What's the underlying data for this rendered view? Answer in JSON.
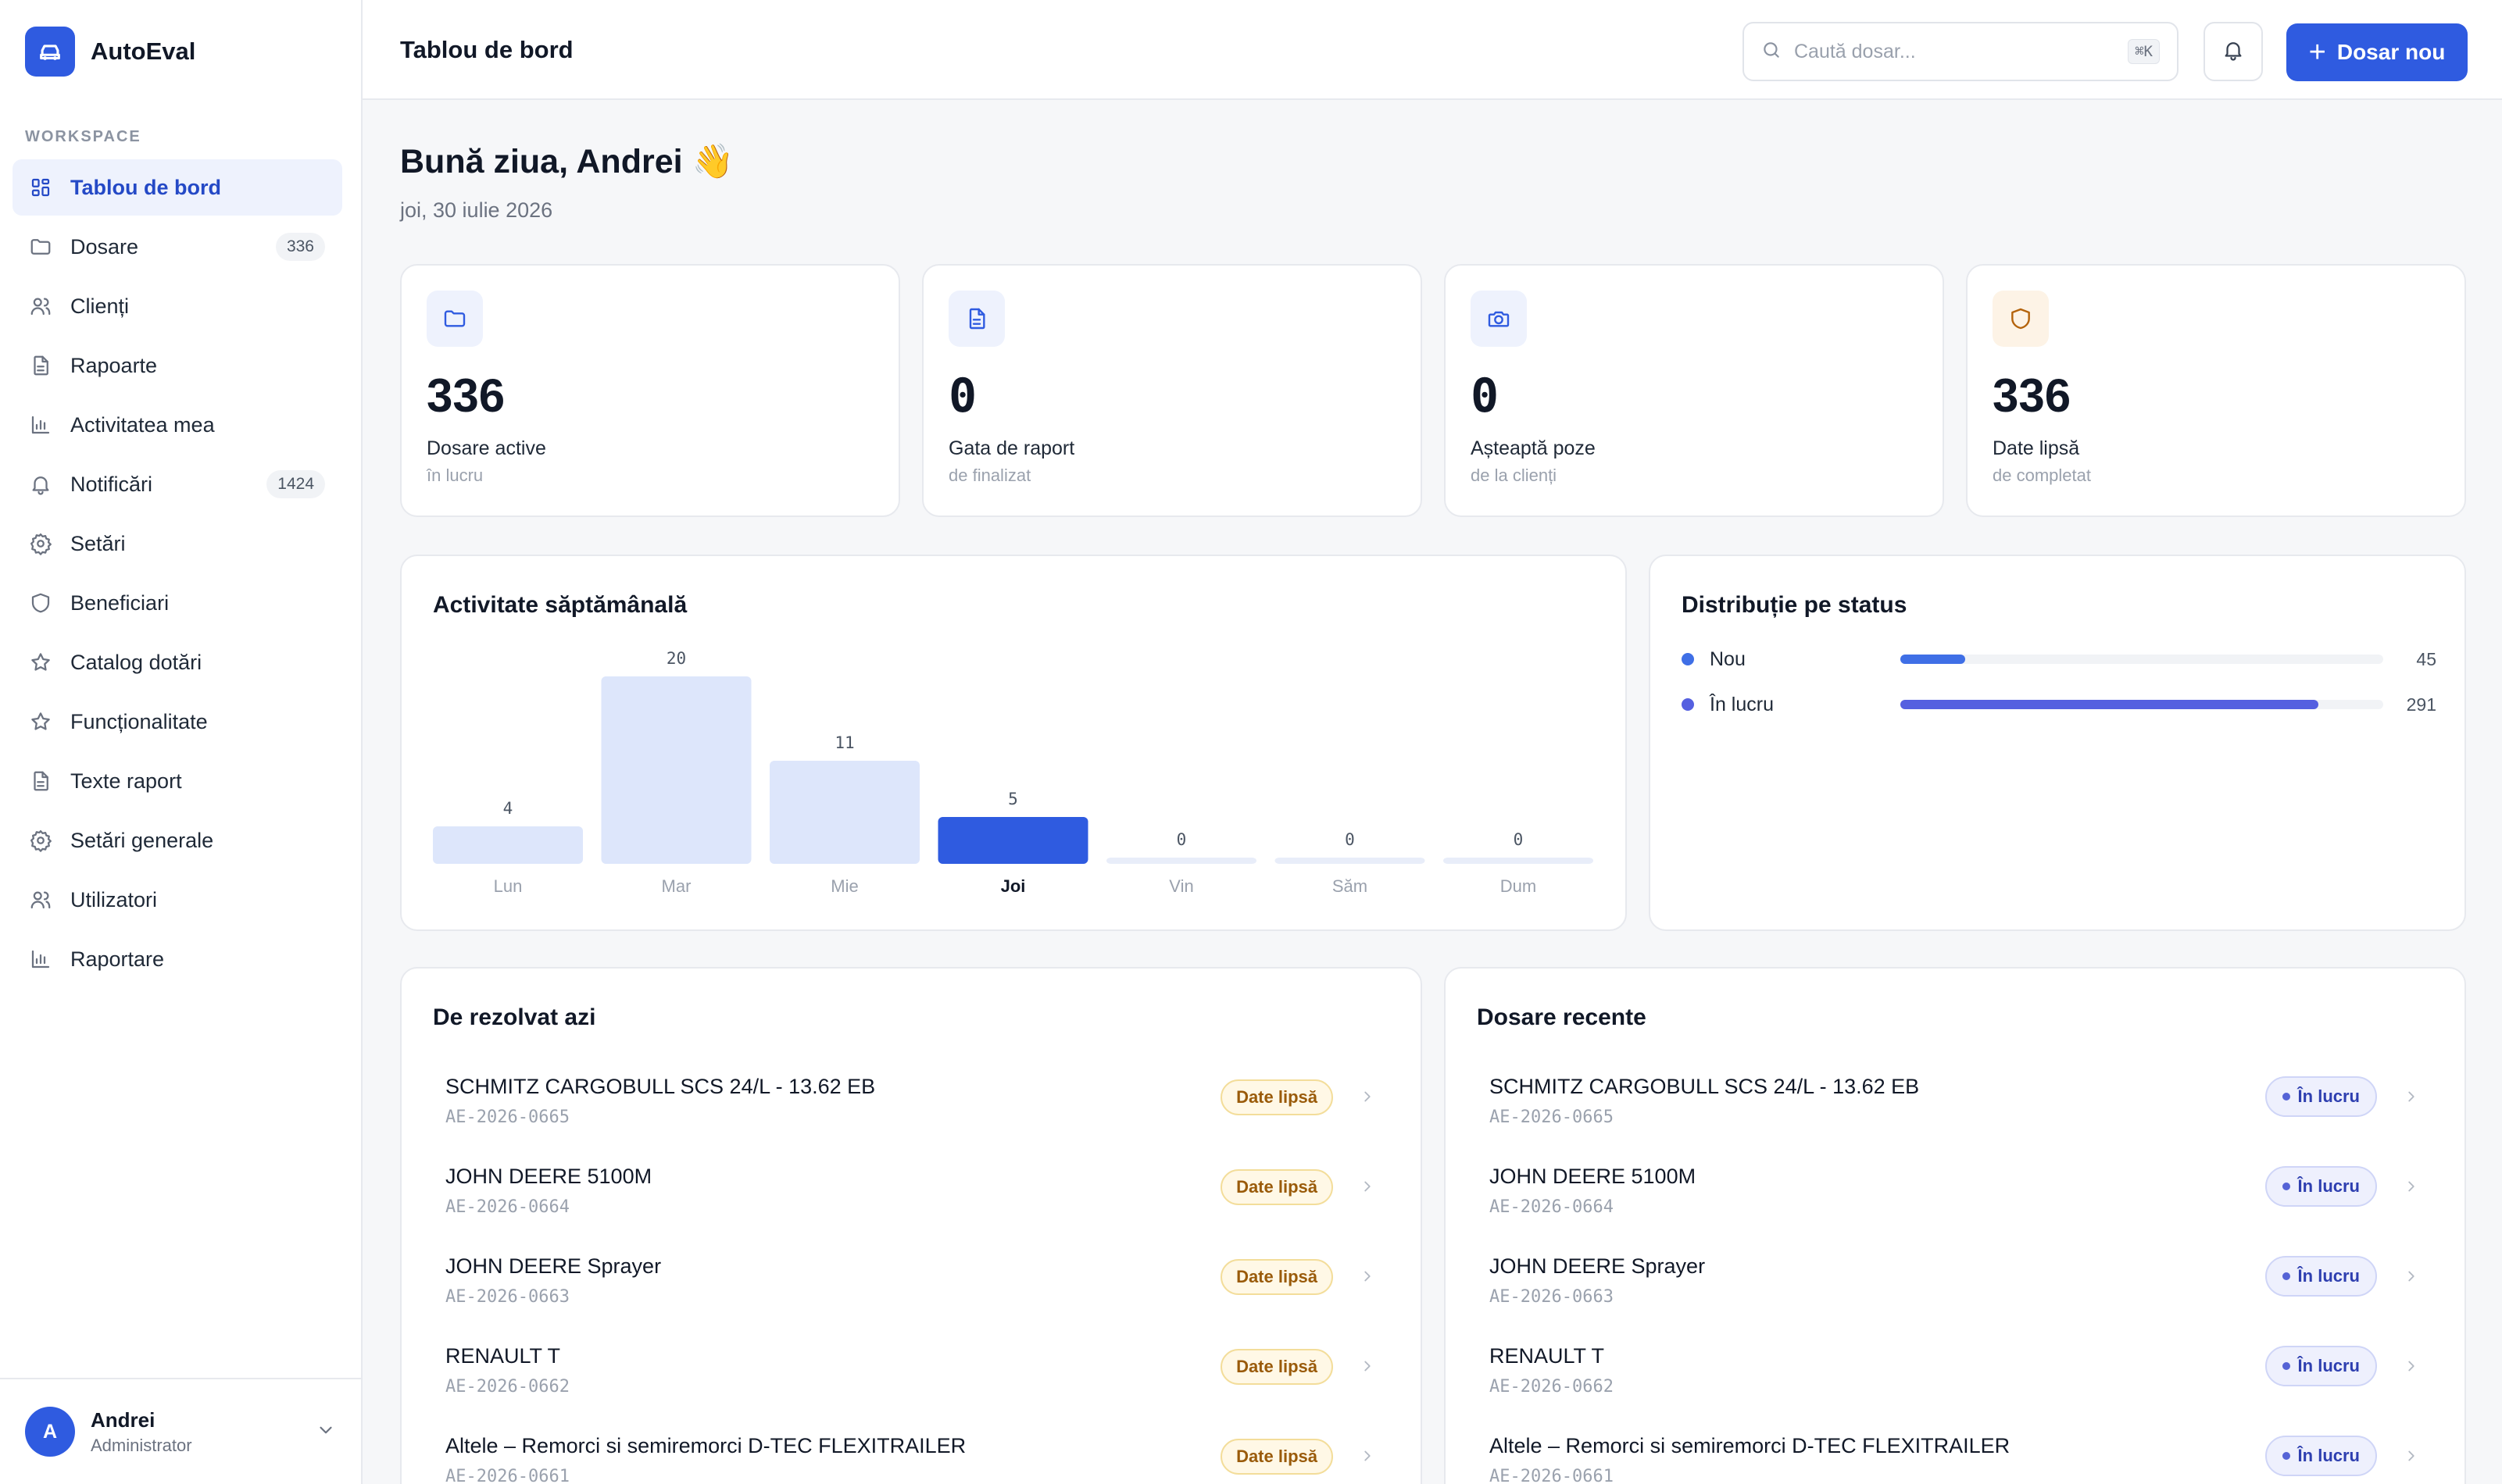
{
  "app": {
    "name": "AutoEval",
    "section_label": "WORKSPACE"
  },
  "sidebar": {
    "items": [
      {
        "label": "Tablou de bord",
        "icon": "dashboard-icon",
        "badge": null,
        "active": true
      },
      {
        "label": "Dosare",
        "icon": "folder-icon",
        "badge": "336"
      },
      {
        "label": "Clienți",
        "icon": "users-icon",
        "badge": null
      },
      {
        "label": "Rapoarte",
        "icon": "document-icon",
        "badge": null
      },
      {
        "label": "Activitatea mea",
        "icon": "bar-chart-icon",
        "badge": null
      },
      {
        "label": "Notificări",
        "icon": "bell-icon",
        "badge": "1424"
      },
      {
        "label": "Setări",
        "icon": "gear-icon",
        "badge": null
      },
      {
        "label": "Beneficiari",
        "icon": "shield-icon",
        "badge": null
      },
      {
        "label": "Catalog dotări",
        "icon": "star-icon",
        "badge": null
      },
      {
        "label": "Funcționalitate",
        "icon": "star-icon",
        "badge": null
      },
      {
        "label": "Texte raport",
        "icon": "document-icon",
        "badge": null
      },
      {
        "label": "Setări generale",
        "icon": "gear-icon",
        "badge": null
      },
      {
        "label": "Utilizatori",
        "icon": "users-icon",
        "badge": null
      },
      {
        "label": "Raportare",
        "icon": "bar-chart-icon",
        "badge": null
      }
    ]
  },
  "user": {
    "initial": "A",
    "name": "Andrei",
    "role": "Administrator"
  },
  "header": {
    "title": "Tablou de bord",
    "search_placeholder": "Caută dosar...",
    "shortcut": "⌘K",
    "new_button": "Dosar nou"
  },
  "greeting": {
    "text": "Bună ziua, Andrei 👋",
    "date": "joi, 30 iulie 2026"
  },
  "stats": [
    {
      "value": "336",
      "label": "Dosare active",
      "sub": "în lucru",
      "icon": "folder-icon",
      "icon_bg": "#eef2fd",
      "icon_color": "#2f5be0"
    },
    {
      "value": "0",
      "label": "Gata de raport",
      "sub": "de finalizat",
      "icon": "document-icon",
      "icon_bg": "#eef2fd",
      "icon_color": "#2f5be0"
    },
    {
      "value": "0",
      "label": "Așteaptă poze",
      "sub": "de la clienți",
      "icon": "camera-icon",
      "icon_bg": "#eef2fd",
      "icon_color": "#2f5be0"
    },
    {
      "value": "336",
      "label": "Date lipsă",
      "sub": "de completat",
      "icon": "shield-icon",
      "icon_bg": "#fdf3e6",
      "icon_color": "#b4630c"
    }
  ],
  "weekly": {
    "title": "Activitate săptămânală",
    "colors": {
      "bar": "#dde6fb",
      "today": "#2f5be0",
      "empty": "#e8edf9"
    }
  },
  "chart_data": {
    "type": "bar",
    "categories": [
      "Lun",
      "Mar",
      "Mie",
      "Joi",
      "Vin",
      "Săm",
      "Dum"
    ],
    "values": [
      4,
      20,
      11,
      5,
      0,
      0,
      0
    ],
    "highlight": "Joi",
    "title": "Activitate săptămânală"
  },
  "status": {
    "title": "Distribuție pe status",
    "items": [
      {
        "name": "Nou",
        "count": "45",
        "fraction": 0.134,
        "color": "#3f6fe6"
      },
      {
        "name": "În lucru",
        "count": "291",
        "fraction": 0.866,
        "color": "#5560e0"
      }
    ]
  },
  "today": {
    "title": "De rezolvat azi",
    "rows": [
      {
        "title": "SCHMITZ CARGOBULL SCS 24/L - 13.62 EB",
        "code": "AE-2026-0665",
        "badge": "Date lipsă"
      },
      {
        "title": "JOHN DEERE 5100M",
        "code": "AE-2026-0664",
        "badge": "Date lipsă"
      },
      {
        "title": "JOHN DEERE Sprayer",
        "code": "AE-2026-0663",
        "badge": "Date lipsă"
      },
      {
        "title": "RENAULT T",
        "code": "AE-2026-0662",
        "badge": "Date lipsă"
      },
      {
        "title": "Altele – Remorci si semiremorci D-TEC FLEXITRAILER",
        "code": "AE-2026-0661",
        "badge": "Date lipsă"
      }
    ]
  },
  "recent": {
    "title": "Dosare recente",
    "rows": [
      {
        "title": "SCHMITZ CARGOBULL SCS 24/L - 13.62 EB",
        "code": "AE-2026-0665",
        "badge": "În lucru"
      },
      {
        "title": "JOHN DEERE 5100M",
        "code": "AE-2026-0664",
        "badge": "În lucru"
      },
      {
        "title": "JOHN DEERE Sprayer",
        "code": "AE-2026-0663",
        "badge": "În lucru"
      },
      {
        "title": "RENAULT T",
        "code": "AE-2026-0662",
        "badge": "În lucru"
      },
      {
        "title": "Altele – Remorci si semiremorci D-TEC FLEXITRAILER",
        "code": "AE-2026-0661",
        "badge": "În lucru"
      }
    ]
  }
}
